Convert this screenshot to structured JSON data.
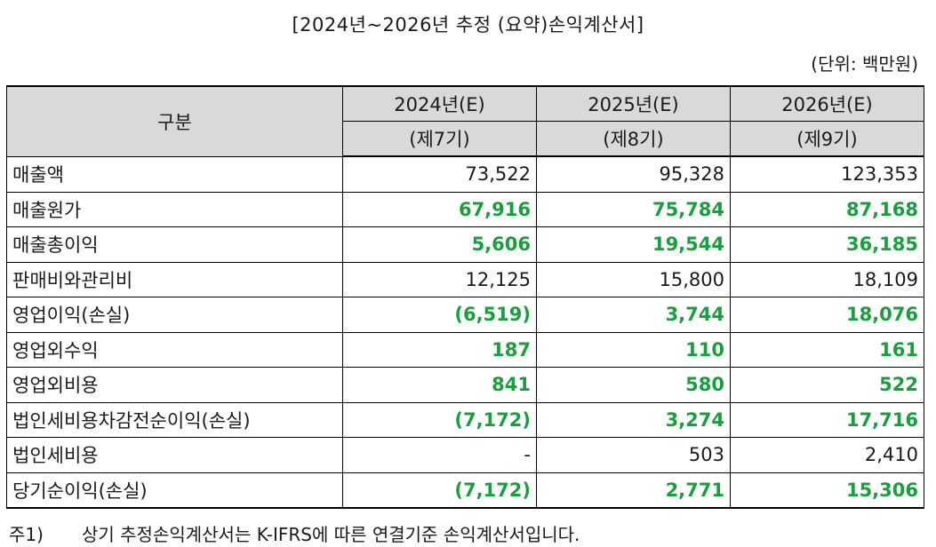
{
  "title": "[2024년~2026년 추정 (요약)손익계산서]",
  "unit": "(단위: 백만원)",
  "table": {
    "header_label": "구분",
    "years": [
      "2024년(E)",
      "2025년(E)",
      "2026년(E)"
    ],
    "periods": [
      "(제7기)",
      "(제8기)",
      "(제9기)"
    ],
    "rows": [
      {
        "label": "매출액",
        "values": [
          "73,522",
          "95,328",
          "123,353"
        ],
        "highlight": false
      },
      {
        "label": "매출원가",
        "values": [
          "67,916",
          "75,784",
          "87,168"
        ],
        "highlight": true
      },
      {
        "label": "매출총이익",
        "values": [
          "5,606",
          "19,544",
          "36,185"
        ],
        "highlight": true
      },
      {
        "label": "판매비와관리비",
        "values": [
          "12,125",
          "15,800",
          "18,109"
        ],
        "highlight": false
      },
      {
        "label": "영업이익(손실)",
        "values": [
          "(6,519)",
          "3,744",
          "18,076"
        ],
        "highlight": true
      },
      {
        "label": "영업외수익",
        "values": [
          "187",
          "110",
          "161"
        ],
        "highlight": true
      },
      {
        "label": "영업외비용",
        "values": [
          "841",
          "580",
          "522"
        ],
        "highlight": true
      },
      {
        "label": "법인세비용차감전순이익(손실)",
        "values": [
          "(7,172)",
          "3,274",
          "17,716"
        ],
        "highlight": true
      },
      {
        "label": "법인세비용",
        "values": [
          "-",
          "503",
          "2,410"
        ],
        "highlight": false
      },
      {
        "label": "당기순이익(손실)",
        "values": [
          "(7,172)",
          "2,771",
          "15,306"
        ],
        "highlight": true
      }
    ]
  },
  "colors": {
    "highlight_text": "#1a9e3e",
    "header_bg": "#d9d9d9"
  },
  "footnote": {
    "marker": "주1)",
    "text": "상기 추정손익계산서는 K-IFRS에 따른 연결기준 손익계산서입니다."
  }
}
